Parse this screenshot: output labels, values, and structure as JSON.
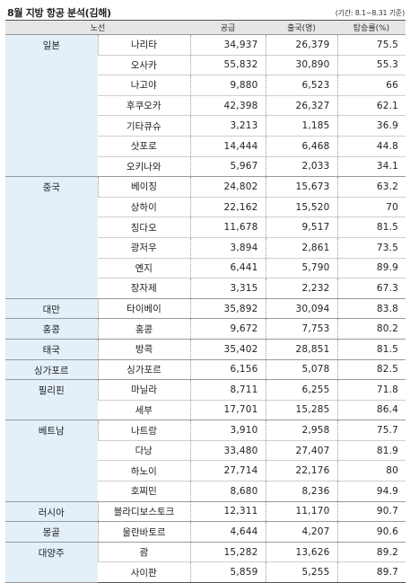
{
  "title": "8월 지방 항공 분석(김해)",
  "period": "(기간: 8.1~8.31 기준)",
  "headers": {
    "route": "노선",
    "supply": "공급",
    "passengers": "출국(명)",
    "load_factor": "탑승률(%)"
  },
  "regions": [
    {
      "name": "일본",
      "cities": [
        {
          "name": "나리타",
          "supply": "34,937",
          "passengers": "26,379",
          "rate": "75.5"
        },
        {
          "name": "오사카",
          "supply": "55,832",
          "passengers": "30,890",
          "rate": "55.3"
        },
        {
          "name": "나고야",
          "supply": "9,880",
          "passengers": "6,523",
          "rate": "66"
        },
        {
          "name": "후쿠오카",
          "supply": "42,398",
          "passengers": "26,327",
          "rate": "62.1"
        },
        {
          "name": "기타큐슈",
          "supply": "3,213",
          "passengers": "1,185",
          "rate": "36.9"
        },
        {
          "name": "삿포로",
          "supply": "14,444",
          "passengers": "6,468",
          "rate": "44.8"
        },
        {
          "name": "오키나와",
          "supply": "5,967",
          "passengers": "2,033",
          "rate": "34.1"
        }
      ]
    },
    {
      "name": "중국",
      "cities": [
        {
          "name": "베이징",
          "supply": "24,802",
          "passengers": "15,673",
          "rate": "63.2"
        },
        {
          "name": "상하이",
          "supply": "22,162",
          "passengers": "15,520",
          "rate": "70"
        },
        {
          "name": "칭다오",
          "supply": "11,678",
          "passengers": "9,517",
          "rate": "81.5"
        },
        {
          "name": "광저우",
          "supply": "3,894",
          "passengers": "2,861",
          "rate": "73.5"
        },
        {
          "name": "옌지",
          "supply": "6,441",
          "passengers": "5,790",
          "rate": "89.9"
        },
        {
          "name": "장자제",
          "supply": "3,315",
          "passengers": "2,232",
          "rate": "67.3"
        }
      ]
    },
    {
      "name": "대만",
      "cities": [
        {
          "name": "타이베이",
          "supply": "35,892",
          "passengers": "30,094",
          "rate": "83.8"
        }
      ]
    },
    {
      "name": "홍콩",
      "cities": [
        {
          "name": "홍콩",
          "supply": "9,672",
          "passengers": "7,753",
          "rate": "80.2"
        }
      ]
    },
    {
      "name": "태국",
      "cities": [
        {
          "name": "방콕",
          "supply": "35,402",
          "passengers": "28,851",
          "rate": "81.5"
        }
      ]
    },
    {
      "name": "싱가포르",
      "cities": [
        {
          "name": "싱가포르",
          "supply": "6,156",
          "passengers": "5,078",
          "rate": "82.5"
        }
      ]
    },
    {
      "name": "필리핀",
      "cities": [
        {
          "name": "마닐라",
          "supply": "8,711",
          "passengers": "6,255",
          "rate": "71.8"
        },
        {
          "name": "세부",
          "supply": "17,701",
          "passengers": "15,285",
          "rate": "86.4"
        }
      ]
    },
    {
      "name": "베트남",
      "cities": [
        {
          "name": "나트랑",
          "supply": "3,910",
          "passengers": "2,958",
          "rate": "75.7"
        },
        {
          "name": "다낭",
          "supply": "33,480",
          "passengers": "27,407",
          "rate": "81.9"
        },
        {
          "name": "하노이",
          "supply": "27,714",
          "passengers": "22,176",
          "rate": "80"
        },
        {
          "name": "호찌민",
          "supply": "8,680",
          "passengers": "8,236",
          "rate": "94.9"
        }
      ]
    },
    {
      "name": "러시아",
      "cities": [
        {
          "name": "블라디보스토크",
          "supply": "12,311",
          "passengers": "11,170",
          "rate": "90.7"
        }
      ]
    },
    {
      "name": "몽골",
      "cities": [
        {
          "name": "울란바토르",
          "supply": "4,644",
          "passengers": "4,207",
          "rate": "90.6"
        }
      ]
    },
    {
      "name": "대양주",
      "cities": [
        {
          "name": "괌",
          "supply": "15,282",
          "passengers": "13,626",
          "rate": "89.2"
        },
        {
          "name": "사이판",
          "supply": "5,859",
          "passengers": "5,255",
          "rate": "89.7"
        }
      ]
    }
  ]
}
